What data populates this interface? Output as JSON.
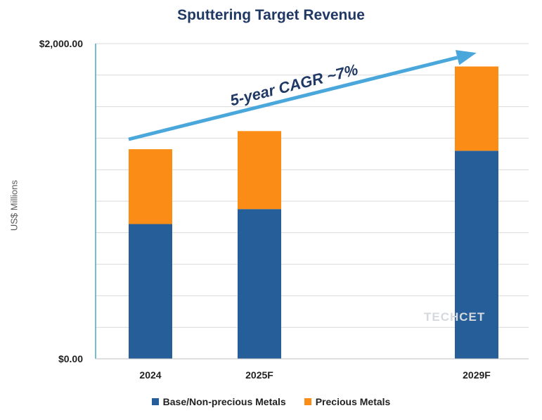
{
  "chart_data": {
    "type": "bar",
    "stacked": true,
    "title": "Sputtering Target Revenue",
    "xlabel": "",
    "ylabel": "US$ Millions",
    "categories": [
      "2024",
      "2025F",
      "2029F"
    ],
    "series": [
      {
        "name": "Base/Non-precious Metals",
        "color": "#255e99",
        "values": [
          855,
          950,
          1320
        ]
      },
      {
        "name": "Precious Metals",
        "color": "#fb8d17",
        "values": [
          475,
          495,
          535
        ]
      }
    ],
    "ylim": [
      0,
      2000
    ],
    "yticks": [
      "$0.00",
      "$2,000.00"
    ],
    "gridlines": 10,
    "grid": true,
    "legend_position": "bottom",
    "annotation": {
      "text": "5-year CAGR ~7%",
      "color": "#4aa7dc",
      "text_color": "#1f3864"
    }
  },
  "watermark": "TECHCET"
}
